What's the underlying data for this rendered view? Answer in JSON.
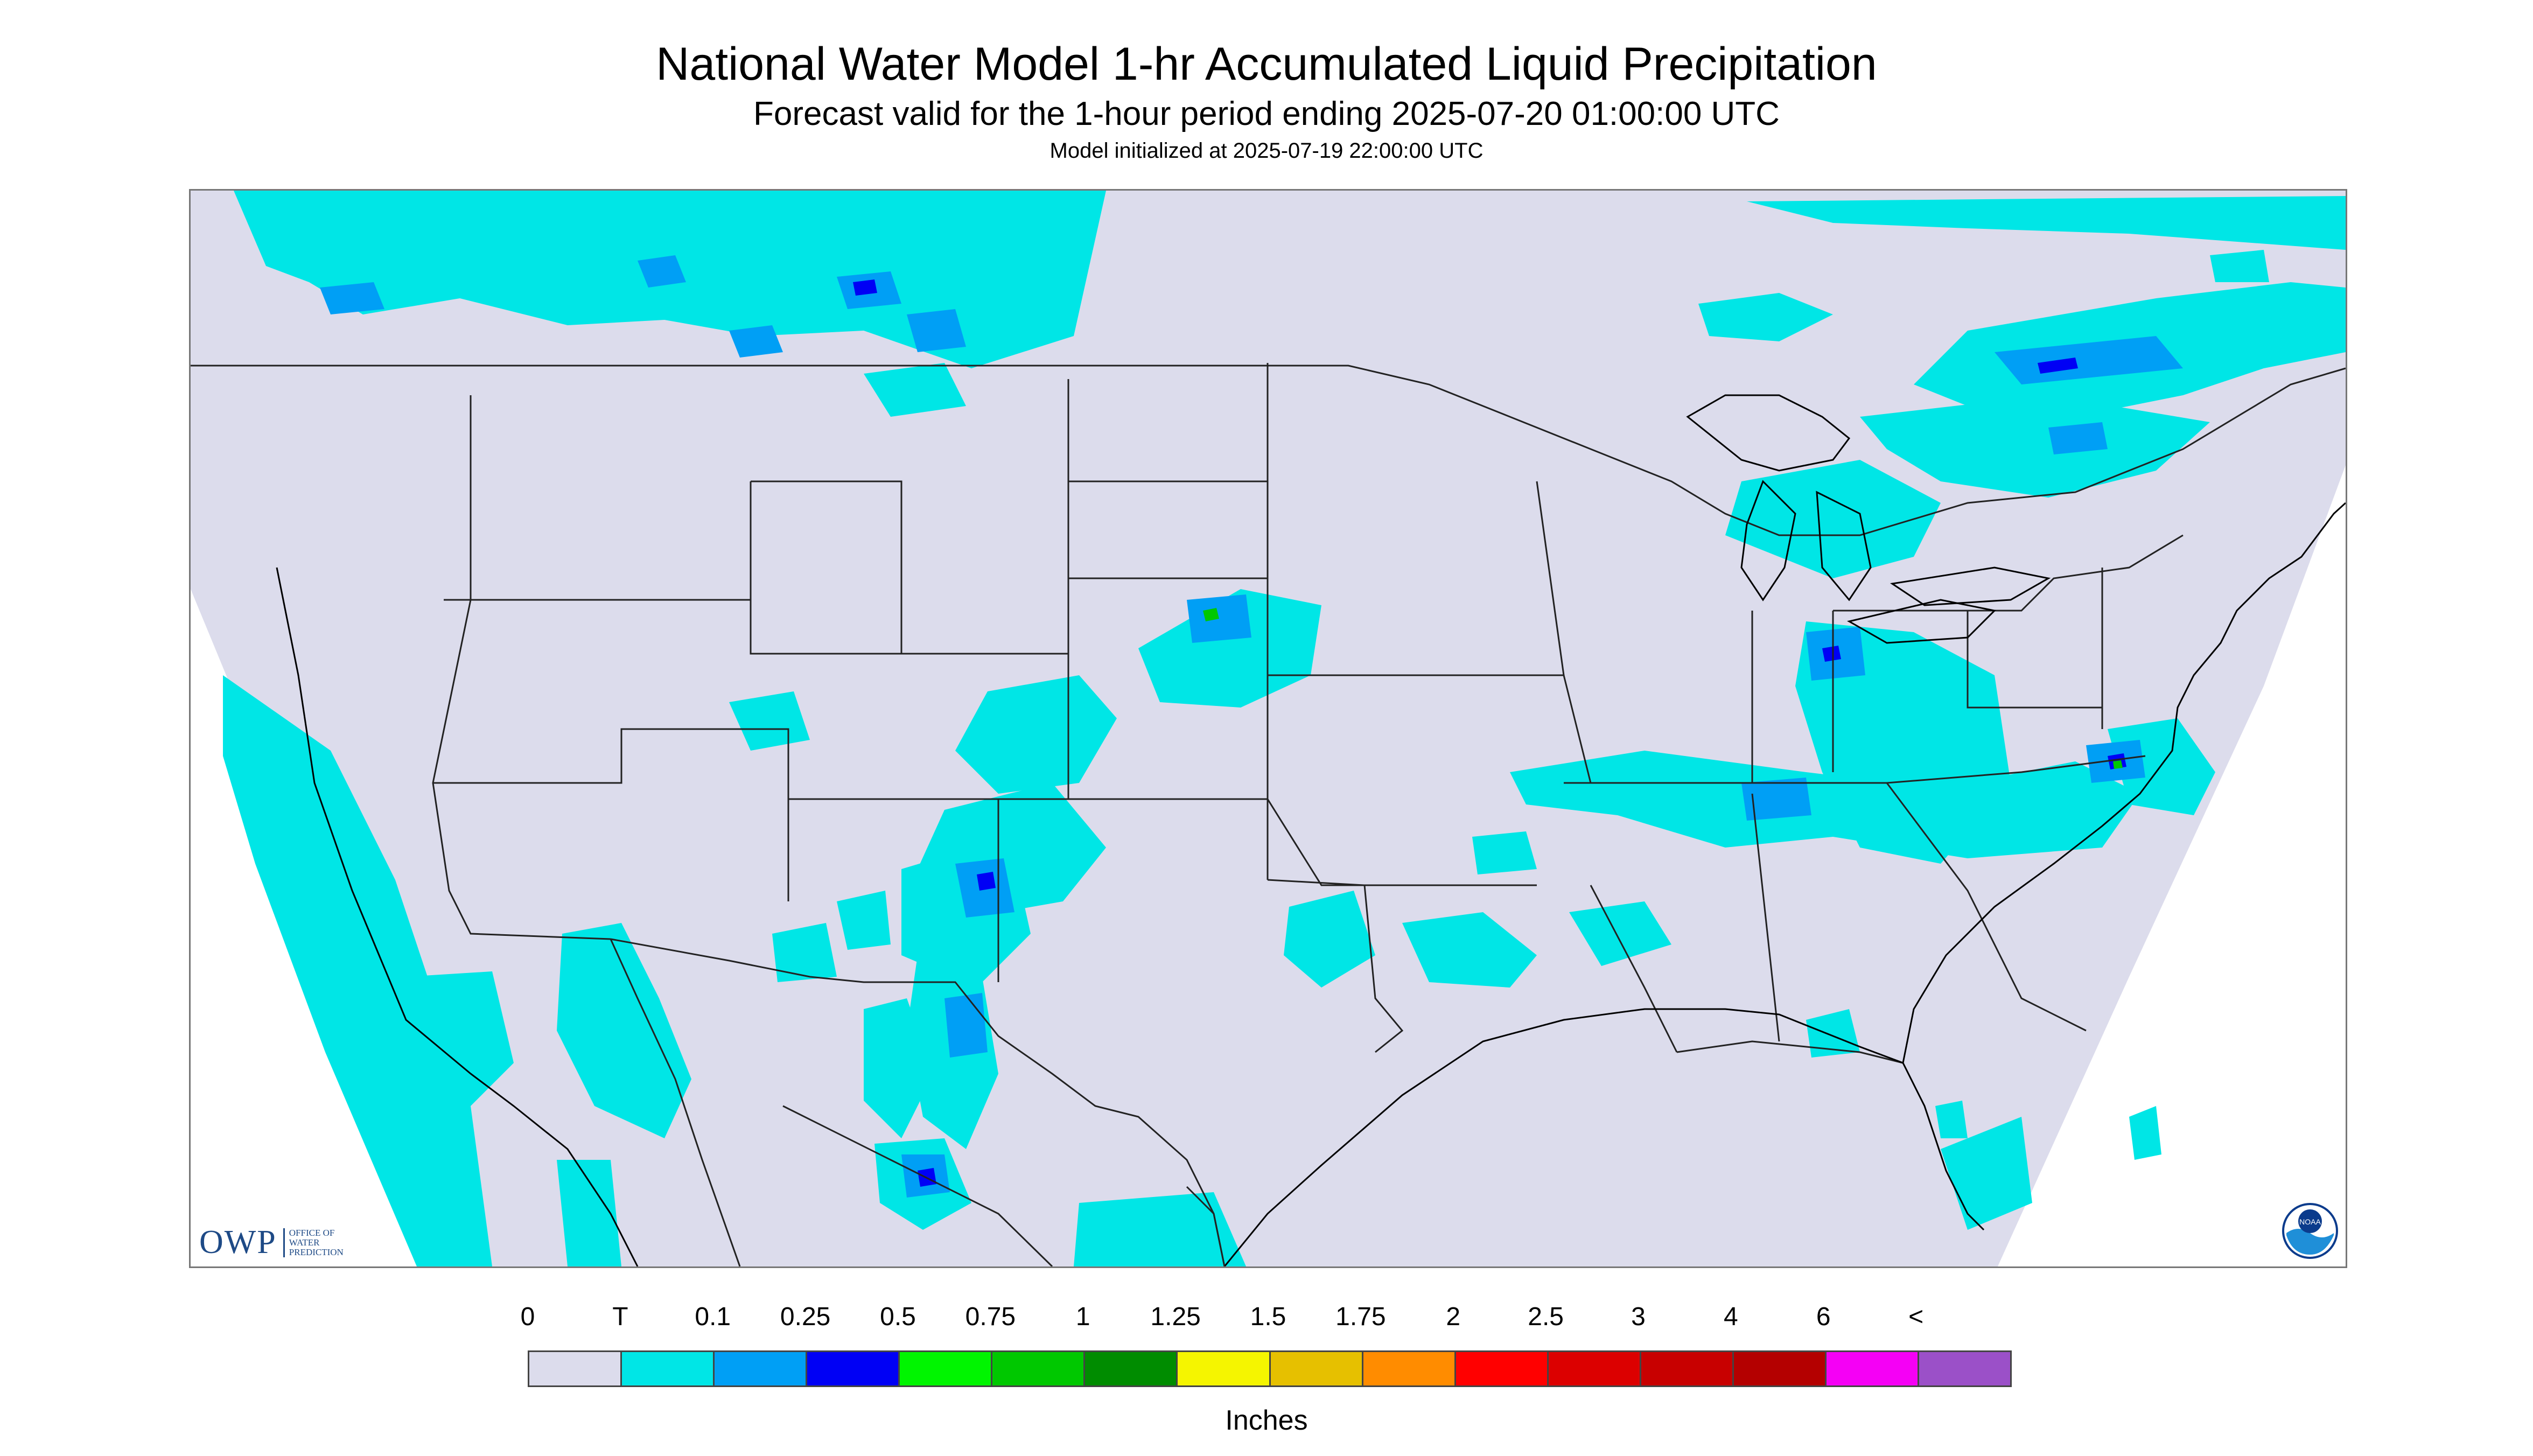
{
  "title": "National Water Model 1-hr Accumulated Liquid Precipitation",
  "subtitle": "Forecast valid for the 1-hour period ending 2025-07-20 01:00:00 UTC",
  "init_text": "Model initialized at 2025-07-19 22:00:00 UTC",
  "units": "Inches",
  "legend": {
    "labels": [
      "0",
      "T",
      "0.1",
      "0.25",
      "0.5",
      "0.75",
      "1",
      "1.25",
      "1.5",
      "1.75",
      "2",
      "2.5",
      "3",
      "4",
      "6",
      "<"
    ],
    "colors": [
      "#dcdcec",
      "#00e6e6",
      "#009ff5",
      "#0000f5",
      "#00f500",
      "#00c800",
      "#008c00",
      "#f5f500",
      "#e6c000",
      "#ff8c00",
      "#ff0000",
      "#dc0000",
      "#c80000",
      "#b40000",
      "#f500f5",
      "#9b50c8"
    ]
  },
  "logos": {
    "owp_text": "OWP",
    "owp_sub": "OFFICE OF WATER PREDICTION",
    "noaa_text": "NOAA"
  },
  "map": {
    "background": "#dcdcec",
    "precip_colors": {
      "light": "#00e6e6",
      "moderate": "#009ff5",
      "heavy": "#0000f5",
      "extreme": "#00c800"
    }
  }
}
